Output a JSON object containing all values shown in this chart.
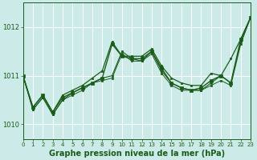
{
  "title": "Graphe pression niveau de la mer (hPa)",
  "bg_color": "#cceae7",
  "grid_color": "#ffffff",
  "line_color": "#1a5c1a",
  "xlim": [
    0,
    23
  ],
  "ylim": [
    1009.7,
    1012.5
  ],
  "yticks": [
    1010,
    1011,
    1012
  ],
  "xticks": [
    0,
    1,
    2,
    3,
    4,
    5,
    6,
    7,
    8,
    9,
    10,
    11,
    12,
    13,
    14,
    15,
    16,
    17,
    18,
    19,
    20,
    21,
    22,
    23
  ],
  "series": [
    [
      1011.0,
      1010.35,
      1010.6,
      1010.25,
      1010.55,
      1010.65,
      1010.75,
      1010.85,
      1010.95,
      1011.65,
      1011.4,
      1011.35,
      1011.35,
      1011.5,
      1011.15,
      1010.85,
      1010.75,
      1010.7,
      1010.75,
      1010.9,
      1011.0,
      1010.85,
      1011.75,
      1012.2
    ],
    [
      1011.0,
      1010.35,
      1010.6,
      1010.25,
      1010.6,
      1010.7,
      1010.8,
      1010.95,
      1011.1,
      1011.7,
      1011.4,
      1011.4,
      1011.4,
      1011.55,
      1011.2,
      1010.95,
      1010.85,
      1010.8,
      1010.8,
      1011.05,
      1011.0,
      1011.35,
      1011.75,
      1012.2
    ],
    [
      1011.0,
      1010.3,
      1010.55,
      1010.2,
      1010.5,
      1010.65,
      1010.75,
      1010.85,
      1010.95,
      1011.0,
      1011.5,
      1011.35,
      1011.3,
      1011.5,
      1011.1,
      1010.85,
      1010.75,
      1010.7,
      1010.7,
      1010.85,
      1011.0,
      1010.85,
      1011.7,
      1012.2
    ],
    [
      1011.0,
      1010.3,
      1010.55,
      1010.2,
      1010.5,
      1010.6,
      1010.7,
      1010.85,
      1010.9,
      1010.95,
      1011.45,
      1011.3,
      1011.3,
      1011.45,
      1011.05,
      1010.8,
      1010.7,
      1010.7,
      1010.7,
      1010.8,
      1010.9,
      1010.8,
      1011.65,
      1012.2
    ]
  ],
  "title_fontsize": 7.0,
  "tick_fontsize": 6,
  "figsize": [
    3.2,
    2.0
  ],
  "dpi": 100
}
